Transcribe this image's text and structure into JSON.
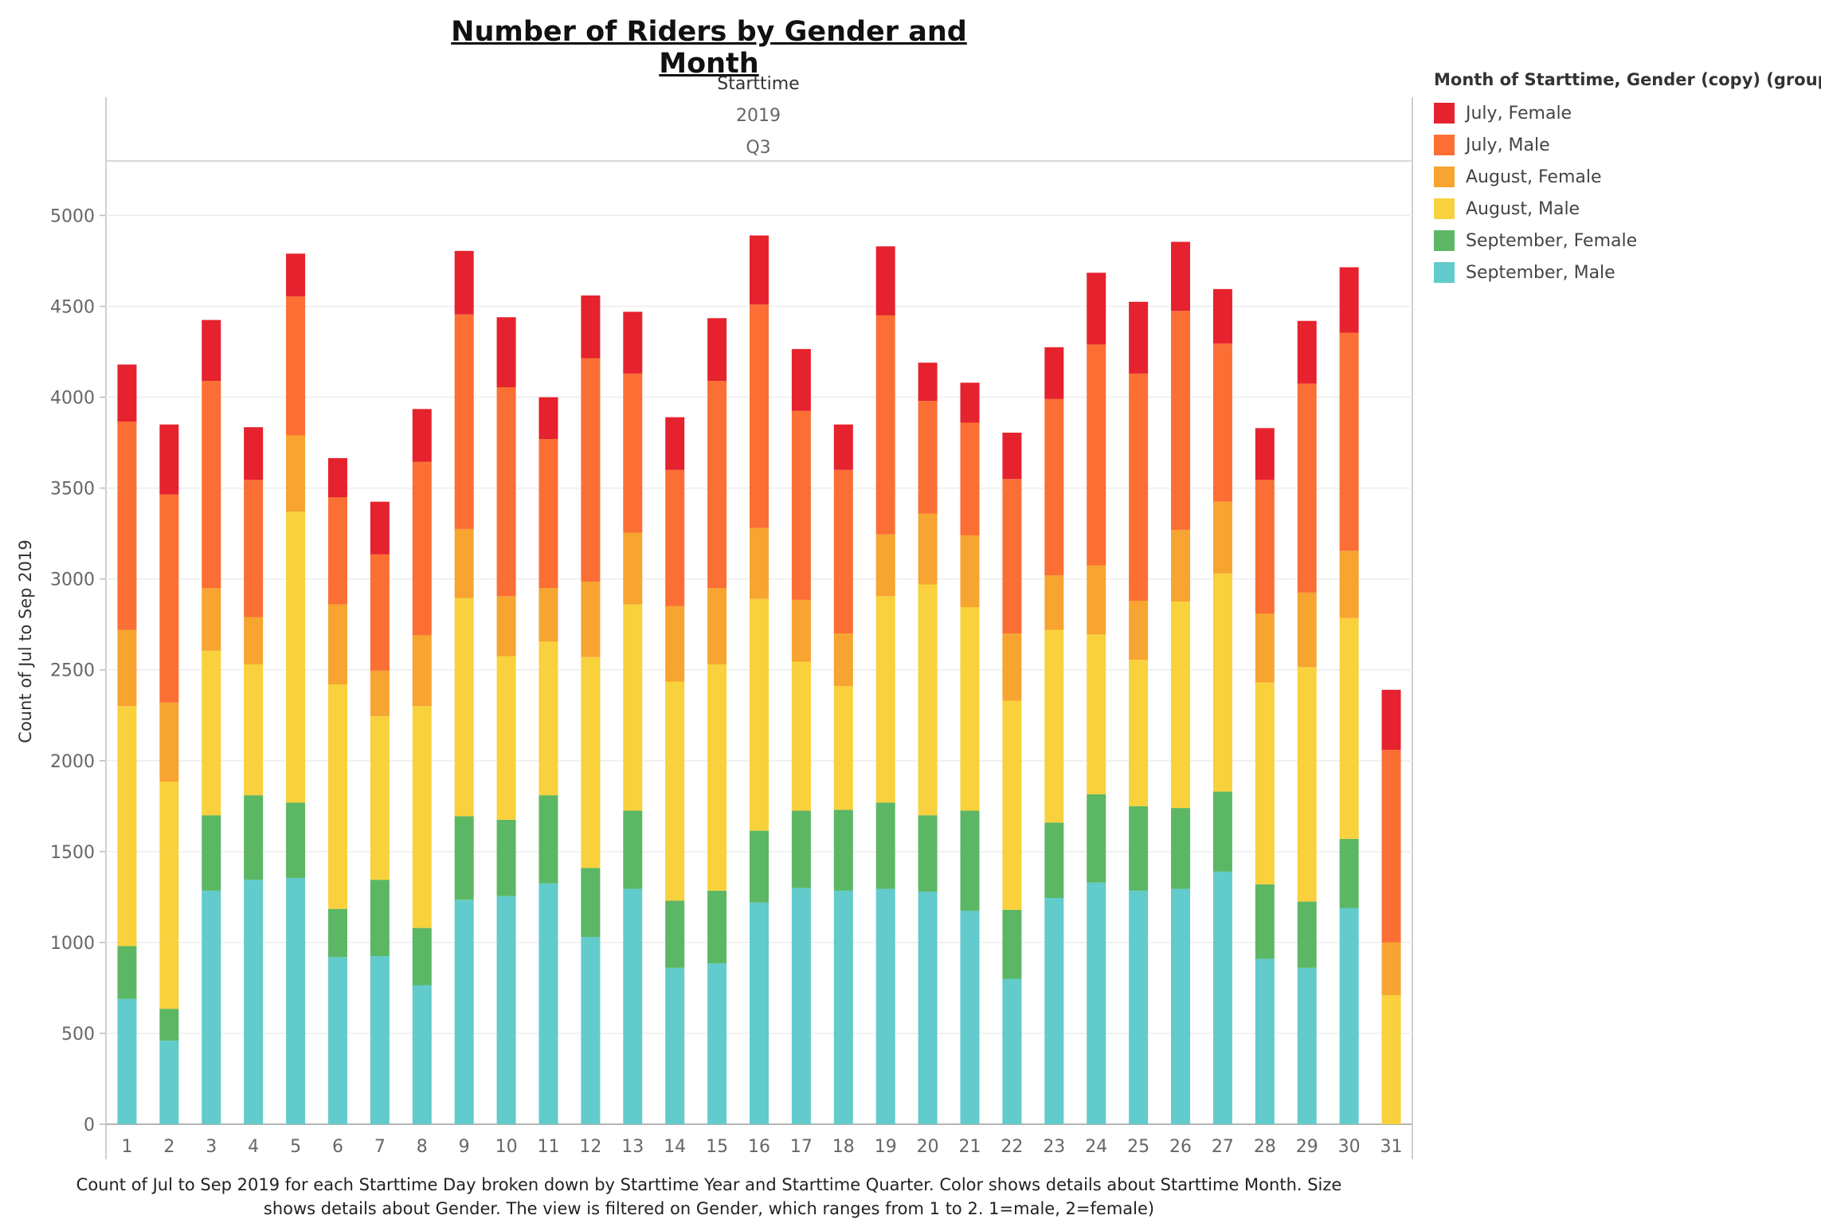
{
  "chart_data": {
    "type": "bar",
    "stacked": true,
    "title": "Number of Riders by Gender and Month",
    "column_header": {
      "field": "Starttime",
      "year": "2019",
      "quarter": "Q3"
    },
    "ylabel": "Count of Jul to Sep 2019",
    "xlabel": "",
    "ylim": [
      0,
      5300
    ],
    "yticks": [
      0,
      500,
      1000,
      1500,
      2000,
      2500,
      3000,
      3500,
      4000,
      4500,
      5000
    ],
    "grid": true,
    "legend_position": "right",
    "legend_title": "Month of Starttime, Gender (copy) (group)",
    "categories": [
      "1",
      "2",
      "3",
      "4",
      "5",
      "6",
      "7",
      "8",
      "9",
      "10",
      "11",
      "12",
      "13",
      "14",
      "15",
      "16",
      "17",
      "18",
      "19",
      "20",
      "21",
      "22",
      "23",
      "24",
      "25",
      "26",
      "27",
      "28",
      "29",
      "30",
      "31"
    ],
    "series": [
      {
        "name": "September, Male",
        "color": "#62cbcb",
        "values": [
          690,
          460,
          1285,
          1345,
          1355,
          920,
          925,
          765,
          1235,
          1255,
          1325,
          1030,
          1295,
          860,
          885,
          1220,
          1300,
          1285,
          1295,
          1280,
          1175,
          800,
          1245,
          1330,
          1285,
          1295,
          1390,
          910,
          860,
          1190,
          0
        ]
      },
      {
        "name": "September, Female",
        "color": "#5cb764",
        "values": [
          290,
          175,
          415,
          465,
          415,
          265,
          420,
          315,
          460,
          420,
          485,
          380,
          430,
          370,
          400,
          395,
          425,
          445,
          475,
          420,
          550,
          380,
          415,
          485,
          465,
          445,
          440,
          410,
          365,
          380,
          0
        ]
      },
      {
        "name": "August, Male",
        "color": "#f9d13c",
        "values": [
          1320,
          1250,
          905,
          720,
          1600,
          1235,
          900,
          1220,
          1200,
          900,
          845,
          1160,
          1135,
          1205,
          1245,
          1275,
          820,
          680,
          1135,
          1270,
          1120,
          1150,
          1060,
          880,
          805,
          1135,
          1200,
          1110,
          1290,
          1215,
          710
        ]
      },
      {
        "name": "August, Female",
        "color": "#f7a430",
        "values": [
          420,
          435,
          345,
          260,
          420,
          440,
          250,
          390,
          380,
          330,
          295,
          415,
          395,
          415,
          420,
          390,
          340,
          290,
          340,
          390,
          395,
          370,
          300,
          380,
          325,
          395,
          395,
          380,
          410,
          370,
          290
        ]
      },
      {
        "name": "July, Male",
        "color": "#fb6f34",
        "values": [
          1145,
          1145,
          1140,
          755,
          765,
          590,
          640,
          955,
          1180,
          1150,
          820,
          1230,
          875,
          750,
          1140,
          1230,
          1040,
          900,
          1205,
          620,
          620,
          850,
          970,
          1215,
          1250,
          1205,
          870,
          735,
          1150,
          1200,
          1060
        ]
      },
      {
        "name": "July, Female",
        "color": "#e5222e",
        "values": [
          315,
          385,
          335,
          290,
          235,
          215,
          290,
          290,
          350,
          385,
          230,
          345,
          340,
          290,
          345,
          380,
          340,
          250,
          380,
          210,
          220,
          255,
          285,
          395,
          395,
          380,
          300,
          285,
          345,
          360,
          330
        ]
      }
    ]
  },
  "caption_lines": [
    "Count of Jul to Sep 2019 for each Starttime Day broken down by Starttime Year and Starttime Quarter.  Color shows details about Starttime Month.  Size",
    "shows details about Gender. The view is filtered on Gender, which ranges from 1 to 2.  1=male, 2=female)"
  ]
}
